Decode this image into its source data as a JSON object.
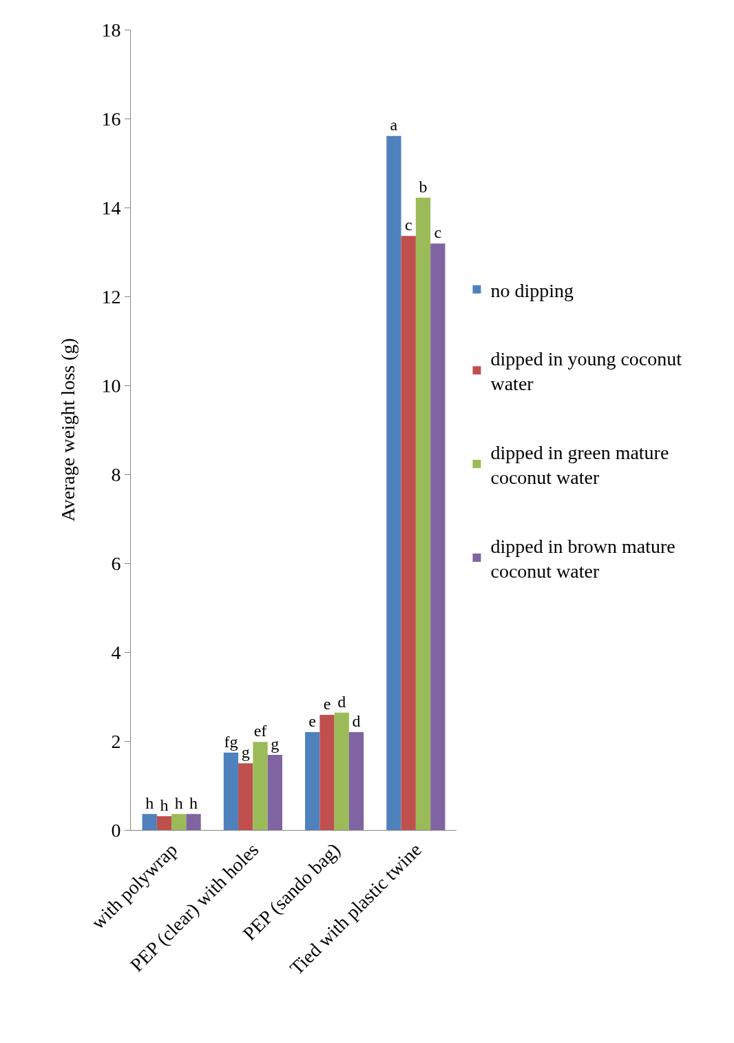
{
  "chart_data": {
    "type": "bar",
    "ylabel": "Average weight loss (g)",
    "categories": [
      "with polywrap",
      "PEP (clear) with holes",
      "PEP (sando bag)",
      "Tied with plastic twine"
    ],
    "series": [
      {
        "name": "no dipping",
        "color": "#4f81bd",
        "values": [
          0.36,
          1.74,
          2.2,
          15.61
        ],
        "value_labels": [
          "h",
          "fg",
          "e",
          "a"
        ]
      },
      {
        "name": "dipped in young coconut water",
        "color": "#c0504d",
        "values": [
          0.31,
          1.5,
          2.59,
          13.36
        ],
        "value_labels": [
          "h",
          "g",
          "e",
          "c"
        ]
      },
      {
        "name": "dipped in green mature coconut water",
        "color": "#9bbb59",
        "values": [
          0.36,
          1.98,
          2.64,
          14.22
        ],
        "value_labels": [
          "h",
          "ef",
          "d",
          "b"
        ]
      },
      {
        "name": "dipped in brown mature coconut water",
        "color": "#8064a2",
        "values": [
          0.36,
          1.69,
          2.2,
          13.19
        ],
        "value_labels": [
          "h",
          "g",
          "d",
          "c"
        ]
      }
    ],
    "ylim": [
      0,
      18
    ],
    "yticks": [
      0,
      2,
      4,
      6,
      8,
      10,
      12,
      14,
      16,
      18
    ],
    "legend": "right"
  }
}
